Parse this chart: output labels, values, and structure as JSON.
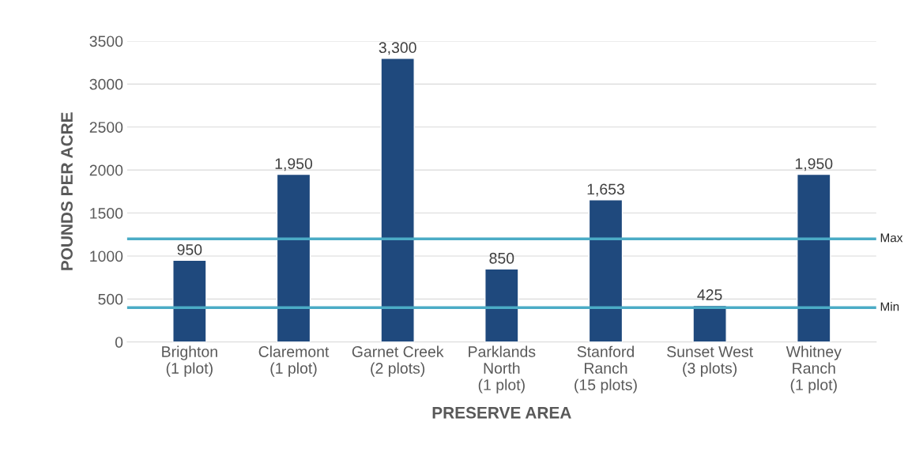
{
  "chart_data": {
    "type": "bar",
    "categories": [
      "Brighton\n(1 plot)",
      "Claremont\n(1 plot)",
      "Garnet Creek\n(2 plots)",
      "Parklands\nNorth\n(1 plot)",
      "Stanford\nRanch\n(15 plots)",
      "Sunset West\n(3 plots)",
      "Whitney\nRanch\n(1 plot)"
    ],
    "values": [
      950,
      1950,
      3300,
      850,
      1653,
      425,
      1950
    ],
    "value_labels": [
      "950",
      "1,950",
      "3,300",
      "850",
      "1,653",
      "425",
      "1,950"
    ],
    "color": "#1f497d",
    "xlabel": "PRESERVE AREA",
    "ylabel": "POUNDS PER ACRE",
    "ylim": [
      0,
      3500
    ],
    "yticks": [
      0,
      500,
      1000,
      1500,
      2000,
      2500,
      3000,
      3500
    ],
    "grid": "y",
    "ref_lines": [
      {
        "axis": "y",
        "value": 1200,
        "label": "Max",
        "color": "#4bacc6"
      },
      {
        "axis": "y",
        "value": 400,
        "label": "Min",
        "color": "#4bacc6"
      }
    ]
  }
}
